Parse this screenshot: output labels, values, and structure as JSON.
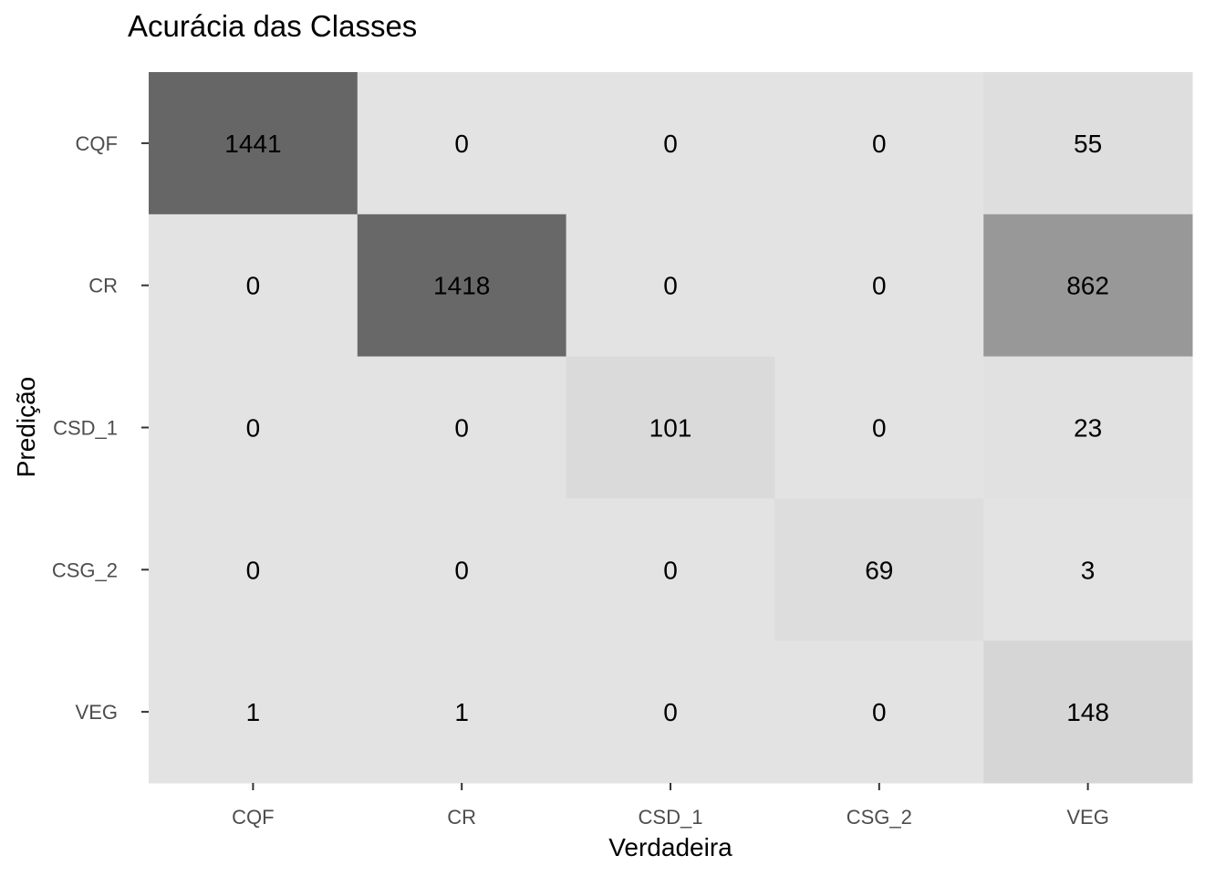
{
  "chart_data": {
    "type": "heatmap",
    "title": "Acurácia das Classes",
    "xlabel": "Verdadeira",
    "ylabel": "Predição",
    "x_categories": [
      "CQF",
      "CR",
      "CSD_1",
      "CSG_2",
      "VEG"
    ],
    "y_categories": [
      "CQF",
      "CR",
      "CSD_1",
      "CSG_2",
      "VEG"
    ],
    "values": [
      [
        1441,
        0,
        0,
        0,
        55
      ],
      [
        0,
        1418,
        0,
        0,
        862
      ],
      [
        0,
        0,
        101,
        0,
        23
      ],
      [
        0,
        0,
        0,
        69,
        3
      ],
      [
        1,
        1,
        0,
        0,
        148
      ]
    ],
    "color_low": "#e3e3e3",
    "color_high": "#666666",
    "legend": "none",
    "grid": false
  }
}
